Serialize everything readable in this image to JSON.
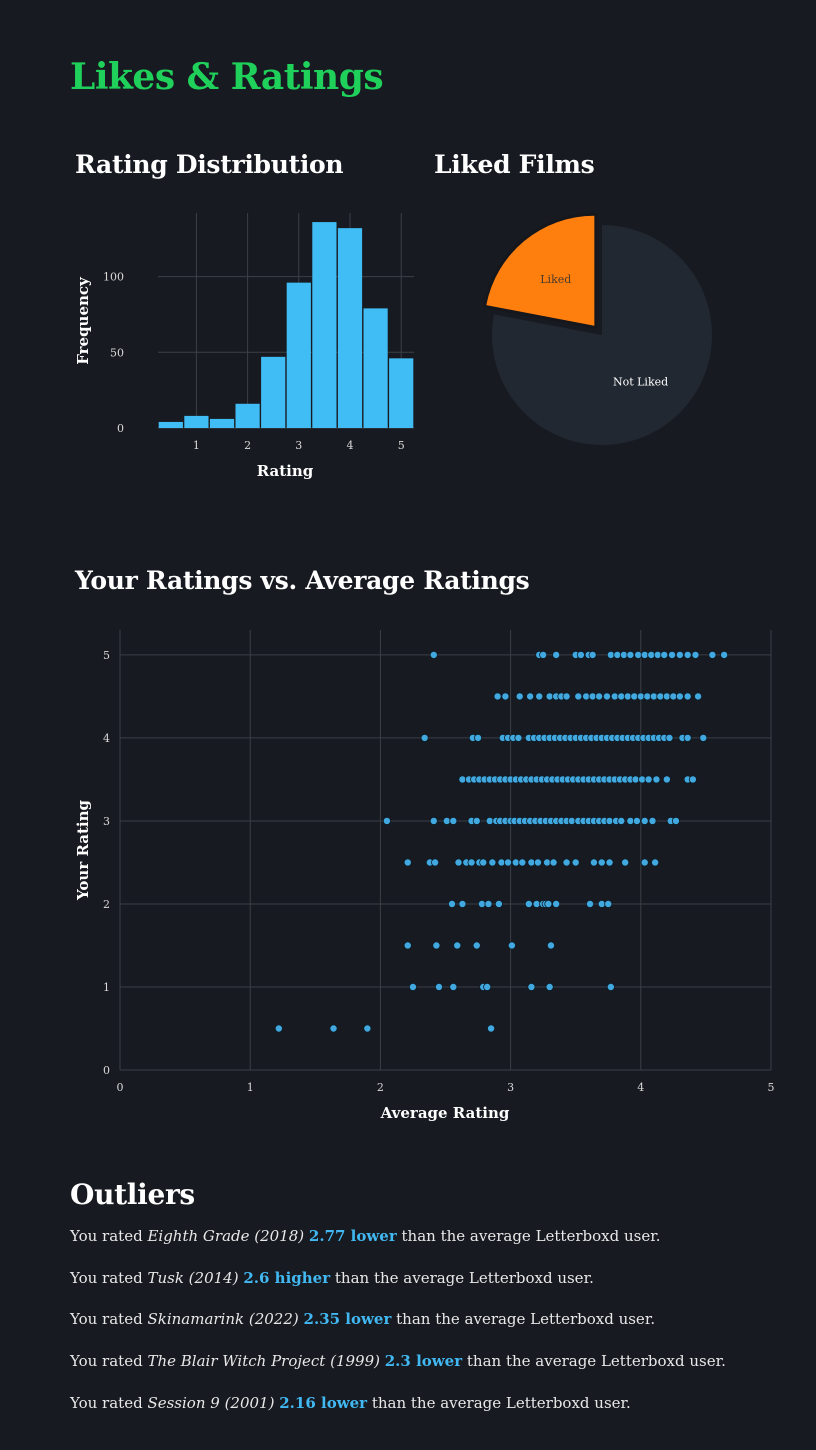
{
  "page": {
    "title": "Likes & Ratings"
  },
  "colors": {
    "title": "#1fd15a",
    "bar": "#41bdf5",
    "scatter": "#41a9e0",
    "liked": "#ff7f0e",
    "not_liked": "#222831",
    "background": "#171a20"
  },
  "rating_distribution": {
    "title": "Rating Distribution"
  },
  "liked_films": {
    "title": "Liked Films"
  },
  "scatter_section": {
    "title": "Your Ratings vs. Average Ratings"
  },
  "chart_data": [
    {
      "type": "bar",
      "title": "Rating Distribution",
      "xlabel": "Rating",
      "ylabel": "Frequency",
      "categories": [
        0.5,
        1,
        1.5,
        2,
        2.5,
        3,
        3.5,
        4,
        4.5,
        5
      ],
      "values": [
        4,
        8,
        6,
        16,
        47,
        96,
        136,
        132,
        79,
        46
      ],
      "xticks": [
        "1",
        "2",
        "3",
        "4",
        "5"
      ],
      "yticks": [
        "0",
        "50",
        "100"
      ],
      "ylim": [
        0,
        142
      ],
      "grid": true
    },
    {
      "type": "pie",
      "title": "Liked Films",
      "slices": [
        {
          "label": "Liked",
          "value": 22,
          "exploded": true
        },
        {
          "label": "Not Liked",
          "value": 78,
          "exploded": false
        }
      ]
    },
    {
      "type": "scatter",
      "title": "Your Ratings vs. Average Ratings",
      "xlabel": "Average Rating",
      "ylabel": "Your Rating",
      "xlim": [
        0,
        5
      ],
      "ylim": [
        0,
        5.3
      ],
      "xticks": [
        "0",
        "1",
        "2",
        "3",
        "4",
        "5"
      ],
      "yticks": [
        "0",
        "1",
        "2",
        "3",
        "4",
        "5"
      ],
      "grid": true,
      "points": [
        [
          1.22,
          0.5
        ],
        [
          1.64,
          0.5
        ],
        [
          1.9,
          0.5
        ],
        [
          2.85,
          0.5
        ],
        [
          2.25,
          1
        ],
        [
          2.45,
          1
        ],
        [
          2.56,
          1
        ],
        [
          2.79,
          1
        ],
        [
          2.82,
          1
        ],
        [
          3.16,
          1
        ],
        [
          3.3,
          1
        ],
        [
          3.77,
          1
        ],
        [
          2.21,
          1.5
        ],
        [
          2.43,
          1.5
        ],
        [
          2.59,
          1.5
        ],
        [
          2.74,
          1.5
        ],
        [
          3.01,
          1.5
        ],
        [
          3.31,
          1.5
        ],
        [
          2.55,
          2
        ],
        [
          2.63,
          2
        ],
        [
          2.78,
          2
        ],
        [
          2.83,
          2
        ],
        [
          2.91,
          2
        ],
        [
          3.14,
          2
        ],
        [
          3.2,
          2
        ],
        [
          3.25,
          2
        ],
        [
          3.27,
          2
        ],
        [
          3.29,
          2
        ],
        [
          3.35,
          2
        ],
        [
          3.61,
          2
        ],
        [
          3.7,
          2
        ],
        [
          3.75,
          2
        ],
        [
          2.21,
          2.5
        ],
        [
          2.38,
          2.5
        ],
        [
          2.42,
          2.5
        ],
        [
          2.6,
          2.5
        ],
        [
          2.66,
          2.5
        ],
        [
          2.7,
          2.5
        ],
        [
          2.76,
          2.5
        ],
        [
          2.79,
          2.5
        ],
        [
          2.86,
          2.5
        ],
        [
          2.93,
          2.5
        ],
        [
          2.98,
          2.5
        ],
        [
          3.04,
          2.5
        ],
        [
          3.09,
          2.5
        ],
        [
          3.16,
          2.5
        ],
        [
          3.21,
          2.5
        ],
        [
          3.28,
          2.5
        ],
        [
          3.33,
          2.5
        ],
        [
          3.43,
          2.5
        ],
        [
          3.5,
          2.5
        ],
        [
          3.64,
          2.5
        ],
        [
          3.7,
          2.5
        ],
        [
          3.76,
          2.5
        ],
        [
          3.88,
          2.5
        ],
        [
          4.03,
          2.5
        ],
        [
          4.11,
          2.5
        ],
        [
          2.05,
          3
        ],
        [
          2.41,
          3
        ],
        [
          2.51,
          3
        ],
        [
          2.56,
          3
        ],
        [
          2.7,
          3
        ],
        [
          2.74,
          3
        ],
        [
          2.84,
          3
        ],
        [
          2.89,
          3
        ],
        [
          2.92,
          3
        ],
        [
          2.96,
          3
        ],
        [
          3.0,
          3
        ],
        [
          3.03,
          3
        ],
        [
          3.07,
          3
        ],
        [
          3.11,
          3
        ],
        [
          3.15,
          3
        ],
        [
          3.19,
          3
        ],
        [
          3.23,
          3
        ],
        [
          3.27,
          3
        ],
        [
          3.31,
          3
        ],
        [
          3.35,
          3
        ],
        [
          3.39,
          3
        ],
        [
          3.43,
          3
        ],
        [
          3.47,
          3
        ],
        [
          3.52,
          3
        ],
        [
          3.56,
          3
        ],
        [
          3.6,
          3
        ],
        [
          3.64,
          3
        ],
        [
          3.68,
          3
        ],
        [
          3.72,
          3
        ],
        [
          3.76,
          3
        ],
        [
          3.81,
          3
        ],
        [
          3.85,
          3
        ],
        [
          3.92,
          3
        ],
        [
          3.97,
          3
        ],
        [
          4.03,
          3
        ],
        [
          4.09,
          3
        ],
        [
          4.23,
          3
        ],
        [
          4.27,
          3
        ],
        [
          2.63,
          3.5
        ],
        [
          2.68,
          3.5
        ],
        [
          2.72,
          3.5
        ],
        [
          2.76,
          3.5
        ],
        [
          2.8,
          3.5
        ],
        [
          2.84,
          3.5
        ],
        [
          2.88,
          3.5
        ],
        [
          2.92,
          3.5
        ],
        [
          2.96,
          3.5
        ],
        [
          3.0,
          3.5
        ],
        [
          3.04,
          3.5
        ],
        [
          3.08,
          3.5
        ],
        [
          3.12,
          3.5
        ],
        [
          3.16,
          3.5
        ],
        [
          3.2,
          3.5
        ],
        [
          3.24,
          3.5
        ],
        [
          3.28,
          3.5
        ],
        [
          3.32,
          3.5
        ],
        [
          3.36,
          3.5
        ],
        [
          3.4,
          3.5
        ],
        [
          3.44,
          3.5
        ],
        [
          3.48,
          3.5
        ],
        [
          3.52,
          3.5
        ],
        [
          3.56,
          3.5
        ],
        [
          3.6,
          3.5
        ],
        [
          3.64,
          3.5
        ],
        [
          3.68,
          3.5
        ],
        [
          3.72,
          3.5
        ],
        [
          3.76,
          3.5
        ],
        [
          3.8,
          3.5
        ],
        [
          3.84,
          3.5
        ],
        [
          3.88,
          3.5
        ],
        [
          3.92,
          3.5
        ],
        [
          3.96,
          3.5
        ],
        [
          4.01,
          3.5
        ],
        [
          4.06,
          3.5
        ],
        [
          4.12,
          3.5
        ],
        [
          4.2,
          3.5
        ],
        [
          4.36,
          3.5
        ],
        [
          4.4,
          3.5
        ],
        [
          2.34,
          4
        ],
        [
          2.71,
          4
        ],
        [
          2.75,
          4
        ],
        [
          2.94,
          4
        ],
        [
          2.98,
          4
        ],
        [
          3.02,
          4
        ],
        [
          3.06,
          4
        ],
        [
          3.14,
          4
        ],
        [
          3.18,
          4
        ],
        [
          3.22,
          4
        ],
        [
          3.26,
          4
        ],
        [
          3.3,
          4
        ],
        [
          3.34,
          4
        ],
        [
          3.38,
          4
        ],
        [
          3.42,
          4
        ],
        [
          3.46,
          4
        ],
        [
          3.5,
          4
        ],
        [
          3.54,
          4
        ],
        [
          3.58,
          4
        ],
        [
          3.62,
          4
        ],
        [
          3.66,
          4
        ],
        [
          3.7,
          4
        ],
        [
          3.74,
          4
        ],
        [
          3.78,
          4
        ],
        [
          3.82,
          4
        ],
        [
          3.86,
          4
        ],
        [
          3.9,
          4
        ],
        [
          3.94,
          4
        ],
        [
          3.98,
          4
        ],
        [
          4.02,
          4
        ],
        [
          4.06,
          4
        ],
        [
          4.1,
          4
        ],
        [
          4.14,
          4
        ],
        [
          4.18,
          4
        ],
        [
          4.22,
          4
        ],
        [
          4.32,
          4
        ],
        [
          4.36,
          4
        ],
        [
          4.48,
          4
        ],
        [
          2.9,
          4.5
        ],
        [
          2.96,
          4.5
        ],
        [
          3.07,
          4.5
        ],
        [
          3.15,
          4.5
        ],
        [
          3.22,
          4.5
        ],
        [
          3.3,
          4.5
        ],
        [
          3.35,
          4.5
        ],
        [
          3.39,
          4.5
        ],
        [
          3.43,
          4.5
        ],
        [
          3.52,
          4.5
        ],
        [
          3.58,
          4.5
        ],
        [
          3.63,
          4.5
        ],
        [
          3.68,
          4.5
        ],
        [
          3.74,
          4.5
        ],
        [
          3.8,
          4.5
        ],
        [
          3.85,
          4.5
        ],
        [
          3.9,
          4.5
        ],
        [
          3.95,
          4.5
        ],
        [
          4.0,
          4.5
        ],
        [
          4.05,
          4.5
        ],
        [
          4.1,
          4.5
        ],
        [
          4.15,
          4.5
        ],
        [
          4.2,
          4.5
        ],
        [
          4.25,
          4.5
        ],
        [
          4.3,
          4.5
        ],
        [
          4.36,
          4.5
        ],
        [
          4.44,
          4.5
        ],
        [
          2.41,
          5
        ],
        [
          3.22,
          5
        ],
        [
          3.25,
          5
        ],
        [
          3.35,
          5
        ],
        [
          3.5,
          5
        ],
        [
          3.54,
          5
        ],
        [
          3.6,
          5
        ],
        [
          3.63,
          5
        ],
        [
          3.77,
          5
        ],
        [
          3.82,
          5
        ],
        [
          3.87,
          5
        ],
        [
          3.92,
          5
        ],
        [
          3.98,
          5
        ],
        [
          4.03,
          5
        ],
        [
          4.08,
          5
        ],
        [
          4.13,
          5
        ],
        [
          4.18,
          5
        ],
        [
          4.24,
          5
        ],
        [
          4.3,
          5
        ],
        [
          4.36,
          5
        ],
        [
          4.42,
          5
        ],
        [
          4.55,
          5
        ],
        [
          4.64,
          5
        ]
      ]
    }
  ],
  "outliers": {
    "title": "Outliers",
    "items": [
      {
        "prefix": "You rated ",
        "film": "Eighth Grade (2018)",
        "diff": "2.77 lower",
        "suffix": " than the average Letterboxd user."
      },
      {
        "prefix": "You rated ",
        "film": "Tusk (2014)",
        "diff": "2.6 higher",
        "suffix": " than the average Letterboxd user."
      },
      {
        "prefix": "You rated ",
        "film": "Skinamarink (2022)",
        "diff": "2.35 lower",
        "suffix": " than the average Letterboxd user."
      },
      {
        "prefix": "You rated ",
        "film": "The Blair Witch Project (1999)",
        "diff": "2.3 lower",
        "suffix": " than the average Letterboxd user."
      },
      {
        "prefix": "You rated ",
        "film": "Session 9 (2001)",
        "diff": "2.16 lower",
        "suffix": " than the average Letterboxd user."
      }
    ]
  }
}
